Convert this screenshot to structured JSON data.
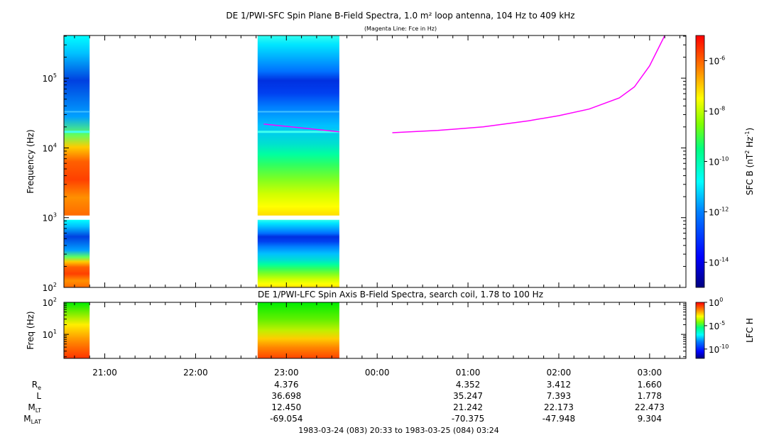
{
  "titles": {
    "main": "DE 1/PWI-SFC  Spin Plane B-Field Spectra, 1.0 m² loop antenna, 104 Hz to 409 kHz",
    "sub": "(Magenta Line: Fce in Hz)",
    "lower": "DE 1/PWI-LFC  Spin Axis B-Field Spectra, search coil, 1.78 to 100 Hz"
  },
  "footer": "1983-03-24 (083) 20:33 to 1983-03-25 (084) 03:24",
  "colors": {
    "magenta": "#ff00ff",
    "background": "#ffffff"
  },
  "chart_data": [
    {
      "type": "heatmap",
      "title": "DE 1/PWI-SFC  Spin Plane B-Field Spectra, 1.0 m² loop antenna, 104 Hz to 409 kHz",
      "ylabel": "Frequency (Hz)",
      "yscale": "log",
      "ylim": [
        100,
        409000
      ],
      "xlim": [
        "20:33",
        "03:24"
      ],
      "x_ticks": [
        "21:00",
        "22:00",
        "23:00",
        "00:00",
        "01:00",
        "02:00",
        "03:00"
      ],
      "y_ticks": [
        {
          "value": 100,
          "base": "10",
          "exp": "2"
        },
        {
          "value": 1000,
          "base": "10",
          "exp": "3"
        },
        {
          "value": 10000,
          "base": "10",
          "exp": "4"
        },
        {
          "value": 100000,
          "base": "10",
          "exp": "5"
        }
      ],
      "data_blocks": [
        {
          "start": "20:33",
          "end": "20:50"
        },
        {
          "start": "22:41",
          "end": "23:35"
        }
      ],
      "colorbar": {
        "label_main": "SFC B (nT",
        "label_sup1": "2",
        "label_mid": " Hz",
        "label_sup2": "-1",
        "label_end": ")",
        "scale": "log",
        "range": [
          "1e-15",
          "1e-5"
        ],
        "ticks": [
          {
            "base": "10",
            "exp": "-6"
          },
          {
            "base": "10",
            "exp": "-8"
          },
          {
            "base": "10",
            "exp": "-10"
          },
          {
            "base": "10",
            "exp": "-12"
          },
          {
            "base": "10",
            "exp": "-14"
          }
        ]
      },
      "fce_line": {
        "name": "Fce",
        "color": "#ff00ff",
        "segments": [
          {
            "x": [
              "22:45",
              "23:35"
            ],
            "y": [
              22000,
              17000
            ]
          },
          {
            "x": [
              "00:10",
              "00:40",
              "01:10",
              "01:40",
              "02:00",
              "02:20",
              "02:40",
              "02:50",
              "03:00",
              "03:10"
            ],
            "y": [
              16500,
              17800,
              20000,
              24500,
              29000,
              36000,
              52000,
              75000,
              150000,
              409000
            ]
          }
        ]
      }
    },
    {
      "type": "heatmap",
      "title": "DE 1/PWI-LFC  Spin Axis B-Field Spectra, search coil, 1.78 to 100 Hz",
      "ylabel": "Freq (Hz)",
      "yscale": "log",
      "ylim": [
        1.78,
        100
      ],
      "y_ticks": [
        {
          "value": 10,
          "base": "10",
          "exp": "1"
        },
        {
          "value": 100,
          "base": "10",
          "exp": "2"
        }
      ],
      "colorbar": {
        "label": "LFC H",
        "scale": "log",
        "ticks": [
          {
            "base": "10",
            "exp": "0"
          },
          {
            "base": "10",
            "exp": "-5"
          },
          {
            "base": "10",
            "exp": "-10"
          }
        ]
      }
    }
  ],
  "ephemeris": {
    "rows": [
      {
        "name": "R",
        "sub": "e",
        "values": [
          "",
          "",
          "4.376",
          "",
          "4.352",
          "3.412",
          "1.660"
        ]
      },
      {
        "name": "L",
        "sub": "",
        "values": [
          "",
          "",
          "36.698",
          "",
          "35.247",
          "7.393",
          "1.778"
        ]
      },
      {
        "name": "M",
        "sub": "LT",
        "values": [
          "",
          "",
          "12.450",
          "",
          "21.242",
          "22.173",
          "22.473"
        ]
      },
      {
        "name": "M",
        "sub": "LAT",
        "values": [
          "",
          "",
          "-69.054",
          "",
          "-70.375",
          "-47.948",
          "9.304"
        ]
      }
    ]
  }
}
